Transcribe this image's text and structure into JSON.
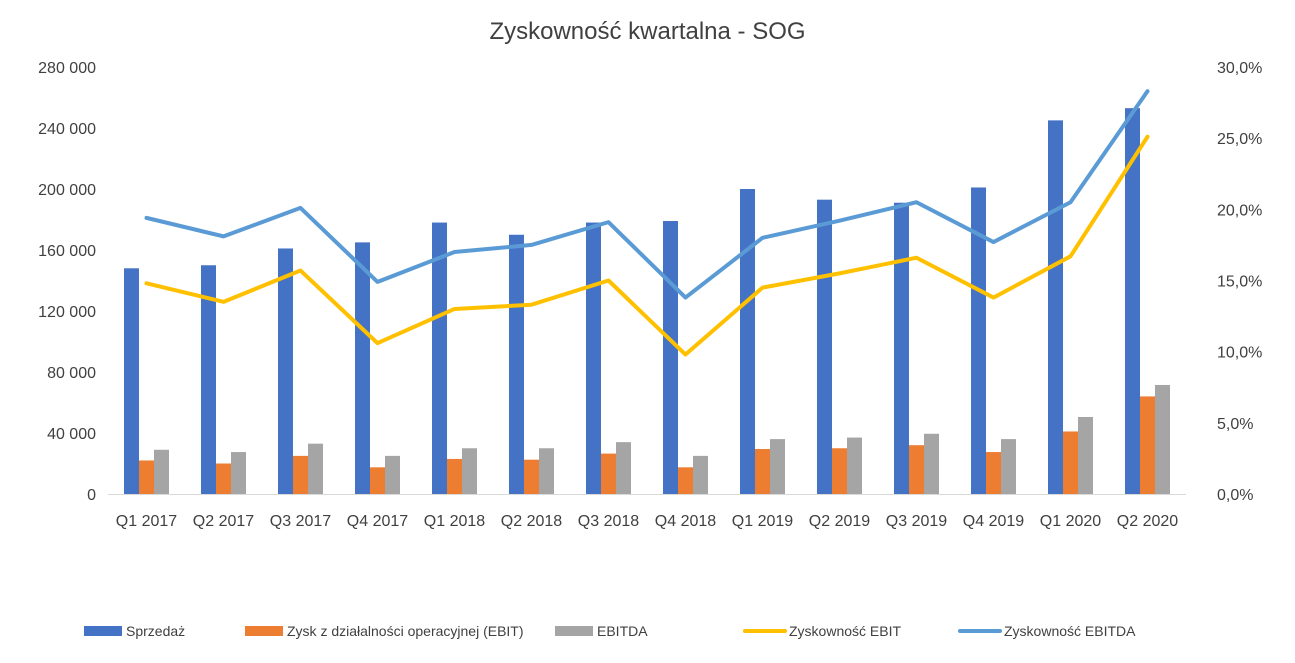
{
  "chart_data": {
    "type": "bar",
    "title": "Zyskowność kwartalna - SOG",
    "categories": [
      "Q1 2017",
      "Q2 2017",
      "Q3 2017",
      "Q4 2017",
      "Q1 2018",
      "Q2 2018",
      "Q3 2018",
      "Q4 2018",
      "Q1 2019",
      "Q2 2019",
      "Q3 2019",
      "Q4 2019",
      "Q1 2020",
      "Q2 2020"
    ],
    "series": [
      {
        "name": "Sprzedaż",
        "type": "bar",
        "axis": "left",
        "color": "#4472C4",
        "values": [
          148000,
          150000,
          161000,
          165000,
          178000,
          170000,
          178000,
          179000,
          200000,
          193000,
          191000,
          201000,
          245000,
          253000
        ]
      },
      {
        "name": "Zysk z działalności operacyjnej (EBIT)",
        "type": "bar",
        "axis": "left",
        "color": "#ED7D31",
        "values": [
          22000,
          20000,
          25000,
          17500,
          23000,
          22500,
          26500,
          17500,
          29500,
          30000,
          32000,
          27500,
          41000,
          64000
        ]
      },
      {
        "name": "EBITDA",
        "type": "bar",
        "axis": "left",
        "color": "#A5A5A5",
        "values": [
          29000,
          27500,
          33000,
          25000,
          30000,
          30000,
          34000,
          25000,
          36000,
          37000,
          39500,
          36000,
          50500,
          71500
        ]
      },
      {
        "name": "Zyskowność EBIT",
        "type": "line",
        "axis": "right",
        "color": "#FFC000",
        "values": [
          14.8,
          13.5,
          15.7,
          10.6,
          13.0,
          13.3,
          15.0,
          9.8,
          14.5,
          15.5,
          16.6,
          13.8,
          16.7,
          25.1
        ]
      },
      {
        "name": "Zyskowność EBITDA",
        "type": "line",
        "axis": "right",
        "color": "#5B9BD5",
        "values": [
          19.4,
          18.1,
          20.1,
          14.9,
          17.0,
          17.5,
          19.1,
          13.8,
          18.0,
          19.2,
          20.5,
          17.7,
          20.5,
          28.3
        ]
      }
    ],
    "y_left": {
      "ylim": [
        0,
        280000
      ],
      "ticks": [
        "0",
        "40 000",
        "80 000",
        "120 000",
        "160 000",
        "200 000",
        "240 000",
        "280 000"
      ]
    },
    "y_right": {
      "ylim": [
        0,
        30
      ],
      "ticks": [
        "0,0%",
        "5,0%",
        "10,0%",
        "15,0%",
        "20,0%",
        "25,0%",
        "30,0%"
      ]
    },
    "grid": false,
    "legend_position": "bottom"
  }
}
